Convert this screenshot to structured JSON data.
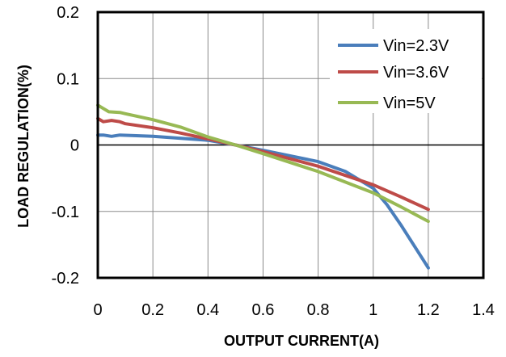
{
  "chart_data": {
    "type": "line",
    "title": "",
    "xlabel": "OUTPUT CURRENT(A)",
    "ylabel": "LOAD REGULATION(%)",
    "xlim": [
      0,
      1.4
    ],
    "ylim": [
      -0.2,
      0.2
    ],
    "x_ticks": [
      "0",
      "0.2",
      "0.4",
      "0.6",
      "0.8",
      "1",
      "1.2",
      "1.4"
    ],
    "y_ticks": [
      "0.2",
      "0.1",
      "0",
      "-0.1",
      "-0.2"
    ],
    "x_tick_values": [
      0,
      0.2,
      0.4,
      0.6,
      0.8,
      1.0,
      1.2,
      1.4
    ],
    "y_tick_values": [
      0.2,
      0.1,
      0,
      -0.1,
      -0.2
    ],
    "grid": true,
    "legend_position": "top-right",
    "series": [
      {
        "name": "Vin=2.3V",
        "color": "#4a7ebb",
        "points": [
          [
            0,
            0.015
          ],
          [
            0.02,
            0.015
          ],
          [
            0.05,
            0.013
          ],
          [
            0.08,
            0.015
          ],
          [
            0.2,
            0.013
          ],
          [
            0.4,
            0.007
          ],
          [
            0.5,
            0.0
          ],
          [
            0.6,
            -0.008
          ],
          [
            0.8,
            -0.025
          ],
          [
            0.9,
            -0.04
          ],
          [
            1.0,
            -0.065
          ],
          [
            1.05,
            -0.09
          ],
          [
            1.1,
            -0.12
          ],
          [
            1.2,
            -0.185
          ]
        ]
      },
      {
        "name": "Vin=3.6V",
        "color": "#be4b48",
        "points": [
          [
            0,
            0.04
          ],
          [
            0.02,
            0.035
          ],
          [
            0.05,
            0.037
          ],
          [
            0.08,
            0.035
          ],
          [
            0.1,
            0.032
          ],
          [
            0.2,
            0.026
          ],
          [
            0.3,
            0.018
          ],
          [
            0.4,
            0.009
          ],
          [
            0.5,
            0.0
          ],
          [
            0.6,
            -0.01
          ],
          [
            0.8,
            -0.032
          ],
          [
            1.0,
            -0.06
          ],
          [
            1.1,
            -0.078
          ],
          [
            1.2,
            -0.097
          ]
        ]
      },
      {
        "name": "Vin=5V",
        "color": "#98b954",
        "points": [
          [
            0,
            0.06
          ],
          [
            0.02,
            0.055
          ],
          [
            0.04,
            0.05
          ],
          [
            0.08,
            0.049
          ],
          [
            0.1,
            0.047
          ],
          [
            0.2,
            0.038
          ],
          [
            0.3,
            0.027
          ],
          [
            0.4,
            0.012
          ],
          [
            0.5,
            0.0
          ],
          [
            0.6,
            -0.013
          ],
          [
            0.8,
            -0.04
          ],
          [
            1.0,
            -0.072
          ],
          [
            1.1,
            -0.093
          ],
          [
            1.2,
            -0.115
          ]
        ]
      }
    ]
  }
}
